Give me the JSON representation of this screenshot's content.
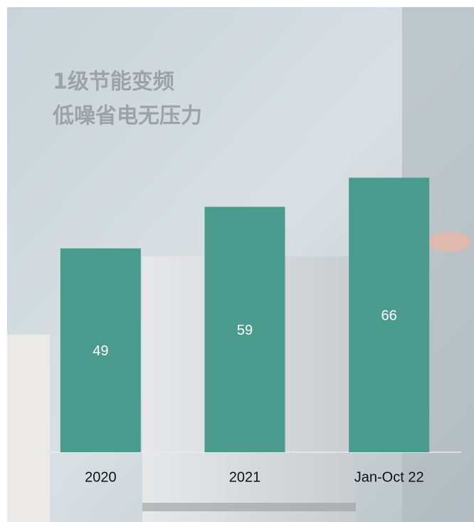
{
  "chart_data": {
    "type": "bar",
    "annotations": [
      "1级节能变频",
      "低噪省电无压力"
    ],
    "categories": [
      "2020",
      "2021",
      "Jan-Oct 22"
    ],
    "values": [
      49,
      59,
      66
    ],
    "color": "#4a9a8e",
    "ylim": [
      0,
      100
    ]
  }
}
